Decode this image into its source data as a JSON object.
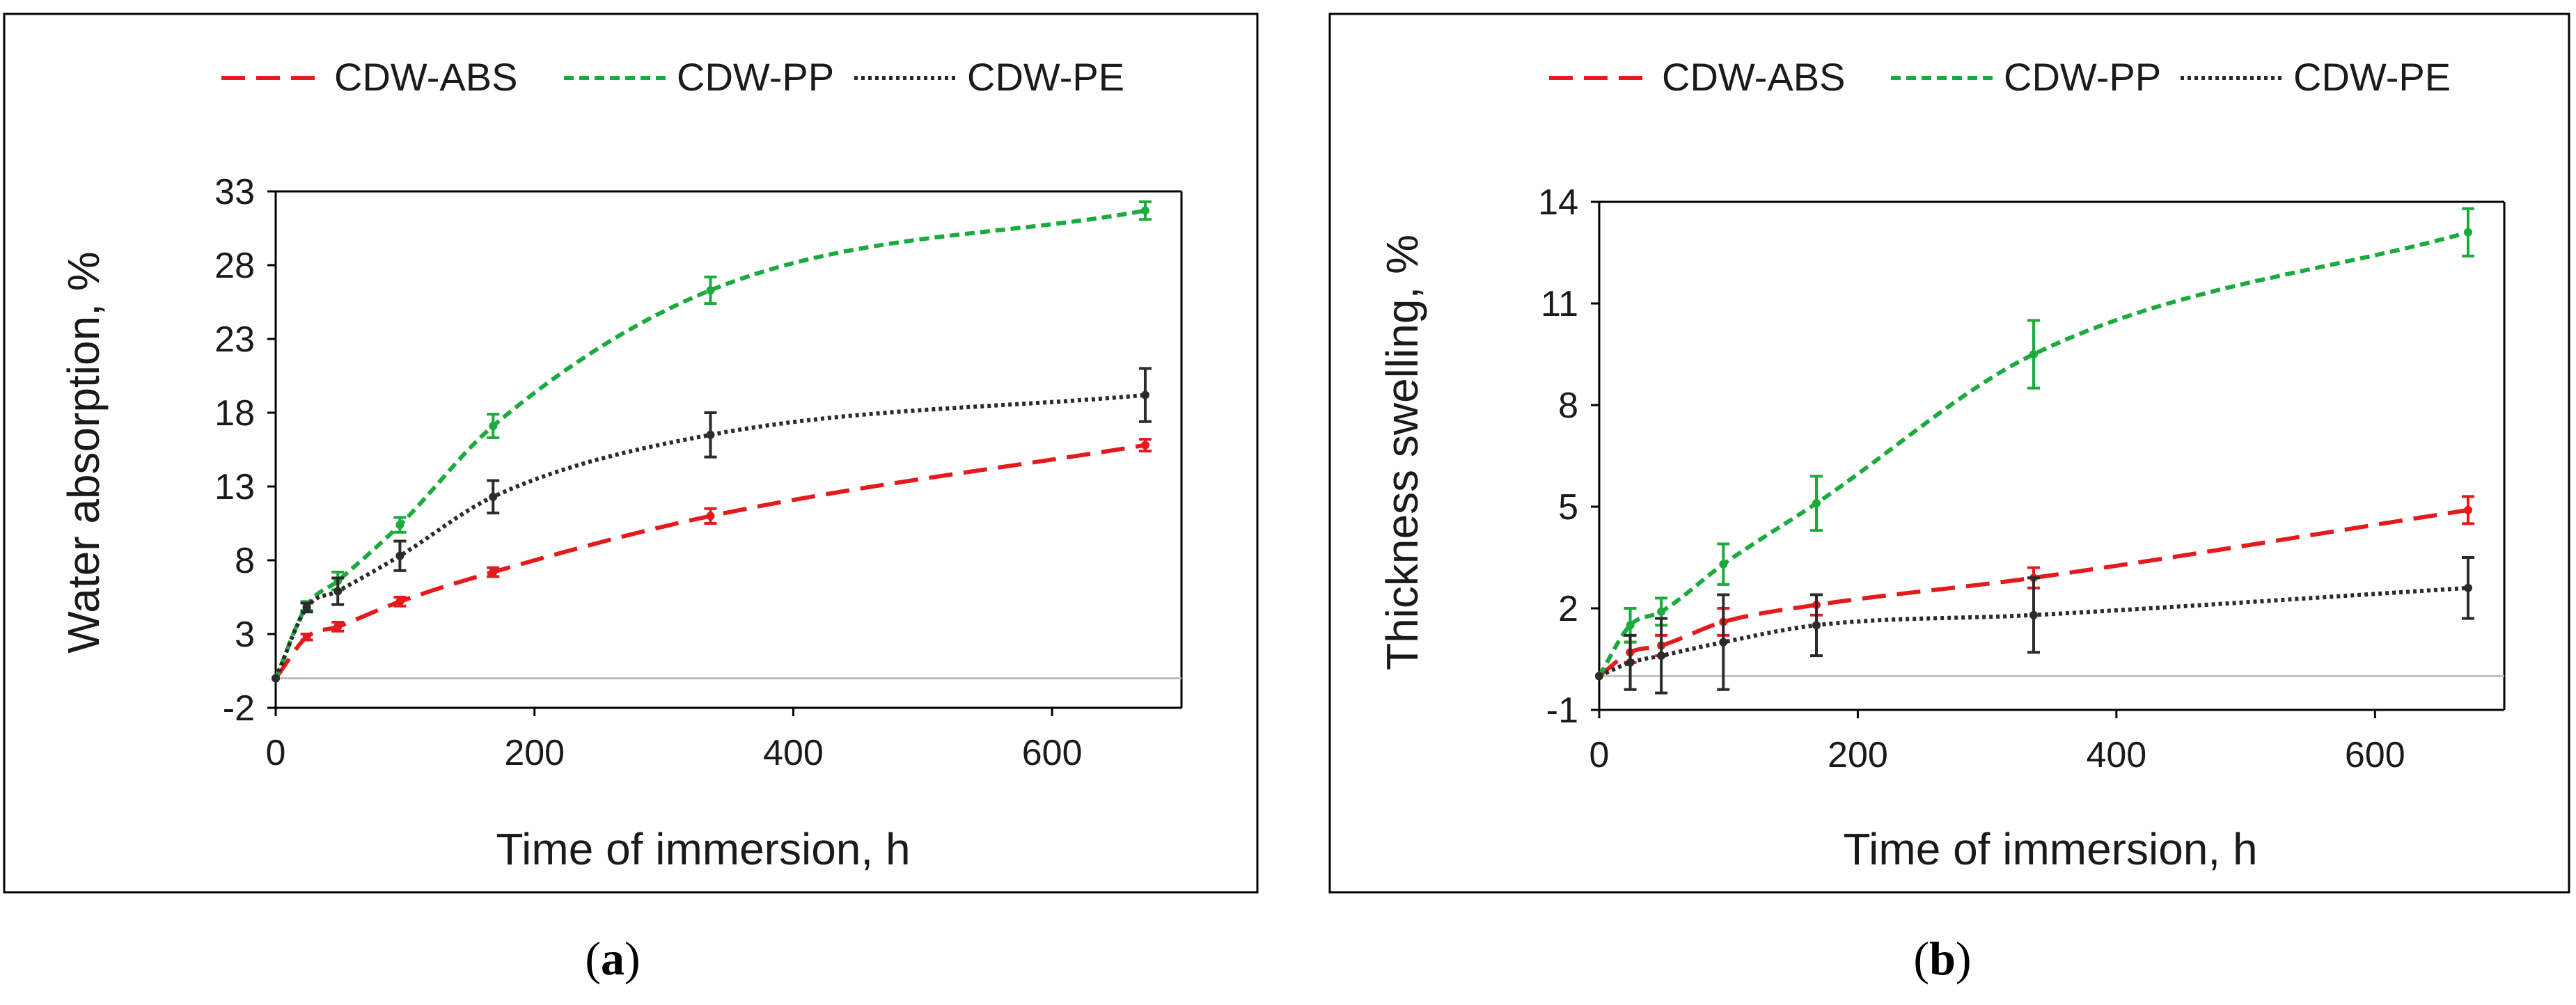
{
  "colors": {
    "CDW-ABS": "#e41a1c",
    "CDW-PP": "#1aab3c",
    "CDW-PE": "#2b2b2b"
  },
  "dashes": {
    "CDW-ABS": "34 16",
    "CDW-PP": "14 8",
    "CDW-PE": "5 5"
  },
  "captions": [
    {
      "open": "(",
      "letter": "a",
      "close": ")"
    },
    {
      "open": "(",
      "letter": "b",
      "close": ")"
    }
  ],
  "chart_data": [
    {
      "type": "line",
      "title": "",
      "xlabel": "Time of immersion, h",
      "ylabel": "Water absorption, %",
      "xlim": [
        0,
        700
      ],
      "ylim": [
        -2,
        33
      ],
      "xticks": [
        0,
        200,
        400,
        600
      ],
      "yticks": [
        -2,
        3,
        8,
        13,
        18,
        23,
        28,
        33
      ],
      "legend": [
        "CDW-ABS",
        "CDW-PP",
        "CDW-PE"
      ],
      "legend_position": "top",
      "grid": false,
      "series": [
        {
          "name": "CDW-ABS",
          "x": [
            0,
            24,
            48,
            96,
            168,
            336,
            672
          ],
          "y": [
            0,
            2.8,
            3.5,
            5.2,
            7.2,
            11.0,
            15.8
          ],
          "err": [
            0,
            0.2,
            0.3,
            0.3,
            0.3,
            0.5,
            0.4
          ]
        },
        {
          "name": "CDW-PP",
          "x": [
            0,
            24,
            48,
            96,
            168,
            336,
            672
          ],
          "y": [
            0,
            4.9,
            6.6,
            10.4,
            17.1,
            26.3,
            31.7
          ],
          "err": [
            0,
            0.3,
            0.6,
            0.5,
            0.8,
            0.9,
            0.6
          ]
        },
        {
          "name": "CDW-PE",
          "x": [
            0,
            24,
            48,
            96,
            168,
            336,
            672
          ],
          "y": [
            0,
            4.8,
            5.9,
            8.3,
            12.3,
            16.5,
            19.2
          ],
          "err": [
            0,
            0.3,
            0.9,
            1.0,
            1.1,
            1.5,
            1.8
          ]
        }
      ]
    },
    {
      "type": "line",
      "title": "",
      "xlabel": "Time of immersion, h",
      "ylabel": "Thickness swelling, %",
      "xlim": [
        0,
        700
      ],
      "ylim": [
        -1,
        14
      ],
      "xticks": [
        0,
        200,
        400,
        600
      ],
      "yticks": [
        -1,
        2,
        5,
        8,
        11,
        14
      ],
      "legend": [
        "CDW-ABS",
        "CDW-PP",
        "CDW-PE"
      ],
      "legend_position": "top",
      "grid": false,
      "series": [
        {
          "name": "CDW-ABS",
          "x": [
            0,
            24,
            48,
            96,
            168,
            336,
            672
          ],
          "y": [
            0,
            0.7,
            0.9,
            1.6,
            2.1,
            2.9,
            4.9
          ],
          "err": [
            0,
            0.3,
            0.3,
            0.4,
            0.3,
            0.3,
            0.4
          ]
        },
        {
          "name": "CDW-PP",
          "x": [
            0,
            24,
            48,
            96,
            168,
            336,
            672
          ],
          "y": [
            0,
            1.5,
            1.9,
            3.3,
            5.1,
            9.5,
            13.1
          ],
          "err": [
            0,
            0.5,
            0.4,
            0.6,
            0.8,
            1.0,
            0.7
          ]
        },
        {
          "name": "CDW-PE",
          "x": [
            0,
            24,
            48,
            96,
            168,
            336,
            672
          ],
          "y": [
            0,
            0.4,
            0.6,
            1.0,
            1.5,
            1.8,
            2.6
          ],
          "err": [
            0,
            0.8,
            1.1,
            1.4,
            0.9,
            1.1,
            0.9
          ]
        }
      ]
    }
  ]
}
